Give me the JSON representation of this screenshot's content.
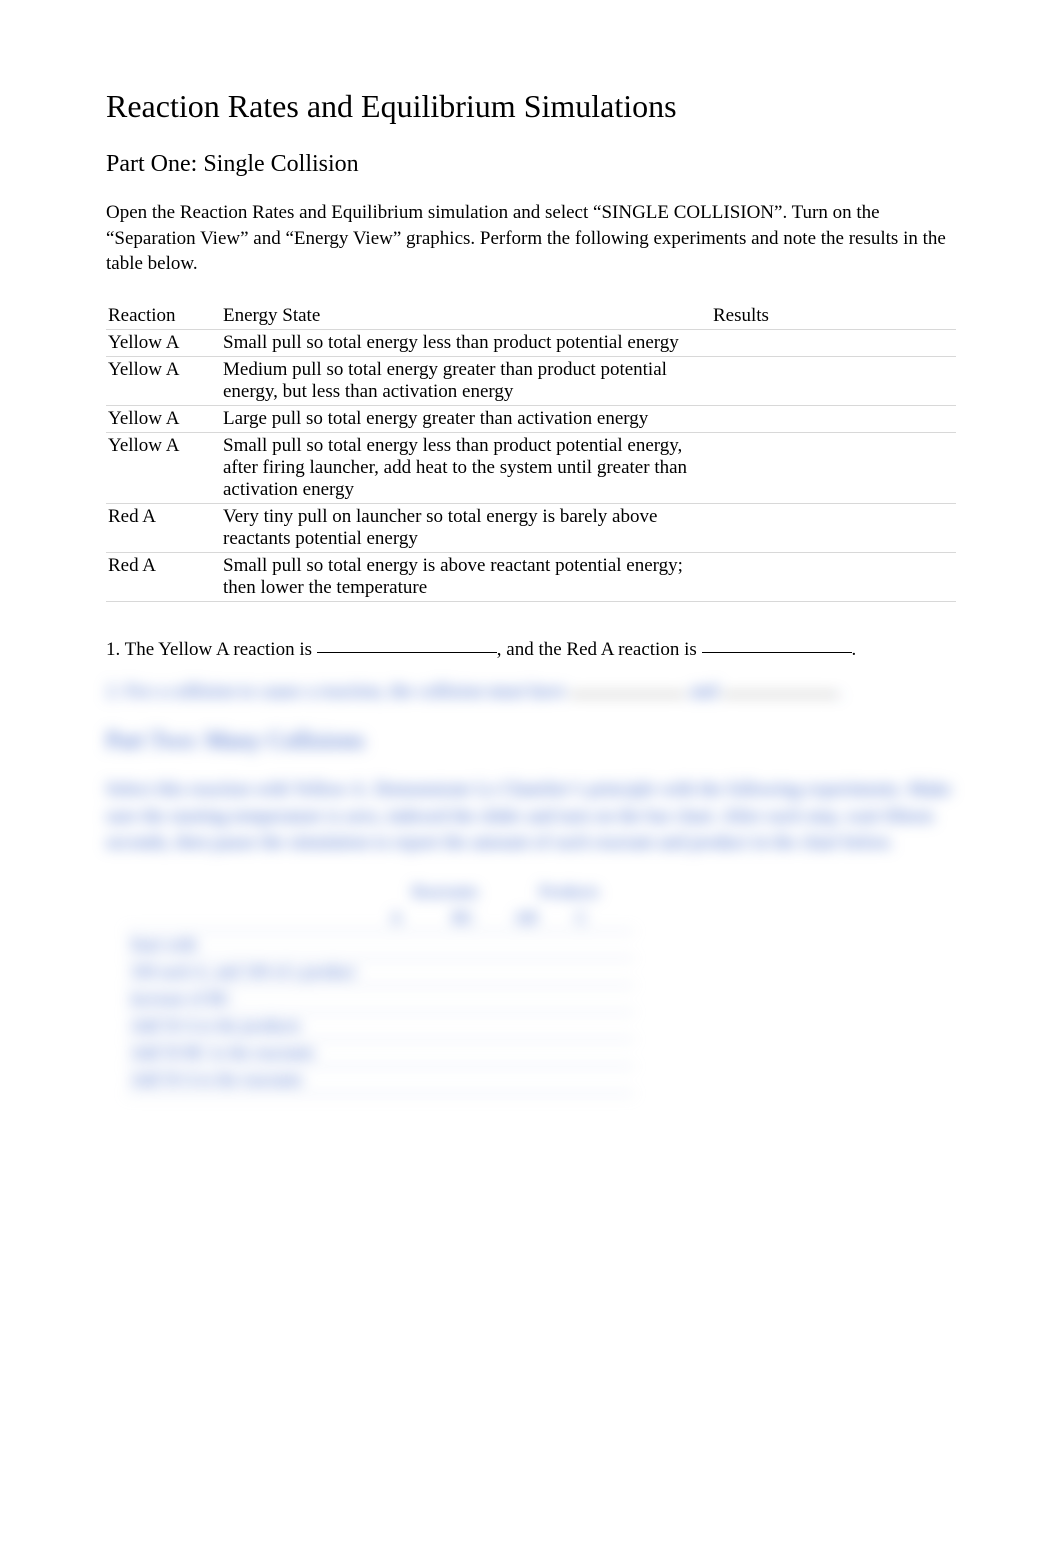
{
  "title": "Reaction Rates and Equilibrium Simulations",
  "part_one": {
    "heading": "Part One: Single Collision",
    "intro": "Open the Reaction Rates and Equilibrium simulation and select “SINGLE COLLISION”.  Turn on the “Separation View” and “Energy View” graphics.  Perform the following experiments and note the results in the table below.",
    "table": {
      "headers": {
        "reaction": "Reaction",
        "energy": "Energy State",
        "results": "Results"
      },
      "rows": [
        {
          "reaction": "Yellow A",
          "energy": "Small pull so total energy less than product potential energy",
          "results": ""
        },
        {
          "reaction": "Yellow A",
          "energy": "Medium pull so total energy greater than product potential energy, but less than activation energy",
          "results": ""
        },
        {
          "reaction": "Yellow A",
          "energy": "Large pull so total energy greater than activation energy",
          "results": ""
        },
        {
          "reaction": "Yellow A",
          "energy": "Small pull so total energy less than product potential energy, after firing launcher, add heat to the system until greater than activation energy",
          "results": ""
        },
        {
          "reaction": "Red A",
          "energy": "Very tiny pull on launcher so total energy is barely above reactants potential energy",
          "results": ""
        },
        {
          "reaction": "Red A",
          "energy": "Small pull so total energy is above reactant potential energy; then lower the temperature",
          "results": ""
        }
      ]
    },
    "q1": {
      "pre": "1. The Yellow A reaction is ",
      "mid": ", and the Red A reaction is ",
      "post": "."
    },
    "q2": {
      "pre": "2. For a collision to cause a reaction, the collision must have ",
      "mid": " and ",
      "post": "."
    }
  },
  "part_two": {
    "heading": "Part Two: Many Collisions",
    "intro": "Select this reaction with Yellow A.  Demonstrate Le Chatelier’s principle with the following experiments.  Make sure the starting temperature is zero, indexed the slider and turn on the bar chart. After each step, wait fifteen seconds, then pause the simulation to report the amount of each reactant and product in the chart below.",
    "table": {
      "group_headers": {
        "reactants": "Reactants",
        "products": "Products"
      },
      "sub_headers": [
        "A",
        "BC",
        "AB",
        "C"
      ],
      "row_labels": [
        "Start with",
        "100 each A, and 100 of a product",
        "increase of BC",
        "Add 50 A to the products",
        "Add 50 BC to the reactants",
        "Add 50 A to the reactants"
      ]
    }
  },
  "colors": {
    "text": "#000000",
    "blur_text": "#3a64c8",
    "row_border": "#d8d8d8",
    "blur_border": "#b8c6e6",
    "background": "#ffffff"
  }
}
